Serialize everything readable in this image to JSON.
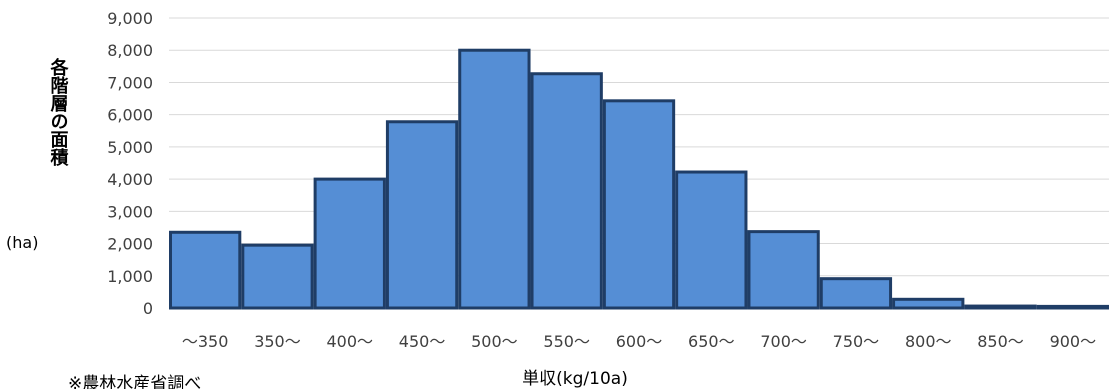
{
  "chart_data": {
    "type": "bar",
    "title": "",
    "title_color": "#ff0000",
    "categories": [
      "〜350",
      "350〜",
      "400〜",
      "450〜",
      "500〜",
      "550〜",
      "600〜",
      "650〜",
      "700〜",
      "750〜",
      "800〜",
      "850〜",
      "900〜"
    ],
    "series": [
      {
        "values": [
          2350,
          1950,
          4000,
          5780,
          8000,
          7270,
          6430,
          4220,
          2370,
          910,
          270,
          60,
          50
        ]
      }
    ],
    "ylim": [
      0,
      9000
    ],
    "yticks": [
      0,
      1000,
      2000,
      3000,
      4000,
      5000,
      6000,
      7000,
      8000,
      9000
    ],
    "ytick_labels": [
      "0",
      "1,000",
      "2,000",
      "3,000",
      "4,000",
      "5,000",
      "6,000",
      "7,000",
      "8,000",
      "9,000"
    ],
    "xlabel": "単収(kg/10a)",
    "ylabel": "各階層の面積",
    "yunit": "(ha)",
    "grid": true,
    "bar_color": "#558ed5",
    "bar_edge_color": "#1f3d66",
    "grid_color": "#d9d9d9"
  },
  "source_note": "※農林水産省調べ"
}
